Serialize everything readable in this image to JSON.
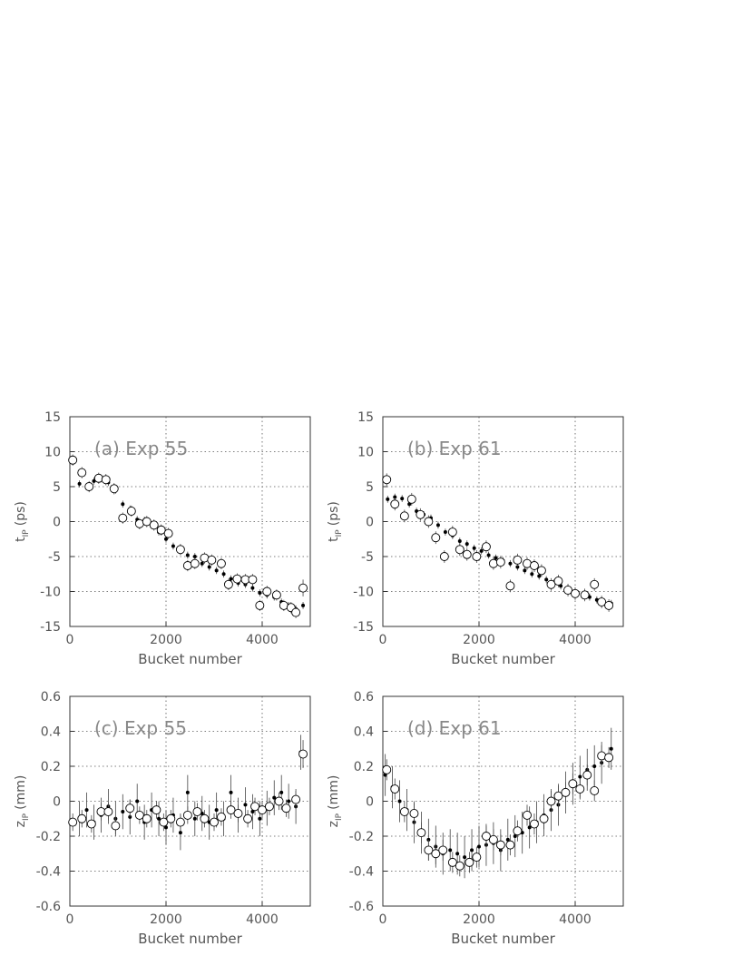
{
  "chart_data": [
    {
      "type": "scatter",
      "annotation": "(a) Exp 55",
      "x_label": "Bucket number",
      "y_label": "t",
      "y_label_subscript": "IP",
      "y_label_unit": "(ps)",
      "xlim": [
        0,
        5000
      ],
      "xticks": [
        0,
        2000,
        4000
      ],
      "ylim": [
        -15,
        15
      ],
      "yticks": [
        -15,
        -10,
        -5,
        0,
        5,
        10,
        15
      ],
      "grid": true,
      "series": [
        {
          "marker": "dot",
          "color": "#000000",
          "x": [
            200,
            350,
            500,
            650,
            800,
            950,
            1100,
            1250,
            1400,
            1550,
            1700,
            1850,
            2000,
            2150,
            2300,
            2450,
            2600,
            2750,
            2900,
            3050,
            3200,
            3350,
            3500,
            3650,
            3800,
            3950,
            4100,
            4250,
            4400,
            4550,
            4700,
            4850
          ],
          "values": [
            5.4,
            5.0,
            5.8,
            6.1,
            5.6,
            4.5,
            2.5,
            1.8,
            0.3,
            0.2,
            -0.5,
            -1.5,
            -2.5,
            -3.5,
            -4.2,
            -4.8,
            -5.0,
            -6.0,
            -6.5,
            -7.0,
            -7.5,
            -8.2,
            -8.8,
            -9.0,
            -9.5,
            -10.2,
            -10.5,
            -10.8,
            -11.5,
            -12.0,
            -12.5,
            -12.0
          ],
          "errors": [
            0.5,
            0.5,
            0.5,
            0.5,
            0.5,
            0.5,
            0.5,
            0.5,
            0.5,
            0.5,
            0.5,
            0.5,
            0.5,
            0.5,
            0.5,
            0.5,
            0.5,
            0.5,
            0.5,
            0.5,
            0.5,
            0.5,
            0.5,
            0.5,
            0.5,
            0.5,
            0.5,
            0.5,
            0.5,
            0.5,
            0.5,
            0.5
          ]
        },
        {
          "marker": "circle",
          "color": "#000000",
          "x": [
            60,
            250,
            400,
            600,
            750,
            920,
            1100,
            1280,
            1450,
            1600,
            1750,
            1900,
            2050,
            2300,
            2450,
            2600,
            2800,
            2950,
            3150,
            3300,
            3480,
            3650,
            3800,
            3950,
            4100,
            4300,
            4450,
            4600,
            4700,
            4850
          ],
          "values": [
            8.8,
            7.0,
            5.0,
            6.2,
            6.0,
            4.7,
            0.5,
            1.5,
            -0.3,
            0.0,
            -0.5,
            -1.2,
            -1.7,
            -4.0,
            -6.3,
            -6.0,
            -5.2,
            -5.5,
            -6.0,
            -9.0,
            -8.2,
            -8.3,
            -8.3,
            -12.0,
            -10.0,
            -10.5,
            -12.0,
            -12.3,
            -13.0,
            -9.5
          ],
          "errors": [
            0.8,
            0.8,
            0.8,
            0.8,
            0.8,
            0.8,
            0.8,
            0.8,
            0.8,
            0.8,
            0.8,
            0.8,
            0.8,
            0.8,
            0.8,
            0.8,
            0.8,
            0.8,
            0.8,
            0.8,
            0.8,
            0.8,
            0.8,
            0.8,
            0.8,
            0.8,
            0.8,
            0.8,
            0.8,
            1.2
          ]
        }
      ]
    },
    {
      "type": "scatter",
      "annotation": "(b) Exp 61",
      "x_label": "Bucket number",
      "y_label": "t",
      "y_label_subscript": "IP",
      "y_label_unit": "(ps)",
      "xlim": [
        0,
        5000
      ],
      "xticks": [
        0,
        2000,
        4000
      ],
      "ylim": [
        -15,
        15
      ],
      "yticks": [
        -15,
        -10,
        -5,
        0,
        5,
        10,
        15
      ],
      "grid": true,
      "series": [
        {
          "marker": "dot",
          "color": "#000000",
          "x": [
            100,
            250,
            400,
            550,
            700,
            850,
            1000,
            1150,
            1300,
            1450,
            1600,
            1750,
            1900,
            2050,
            2200,
            2350,
            2500,
            2650,
            2800,
            2950,
            3100,
            3250,
            3400,
            3550,
            3700,
            3850,
            4000,
            4150,
            4300,
            4450,
            4600,
            4750
          ],
          "values": [
            3.2,
            3.5,
            3.3,
            2.5,
            1.5,
            1.0,
            0.5,
            -0.5,
            -1.5,
            -2.0,
            -2.8,
            -3.2,
            -3.8,
            -4.2,
            -4.8,
            -5.2,
            -5.6,
            -6.0,
            -6.5,
            -7.0,
            -7.5,
            -7.8,
            -8.3,
            -8.8,
            -9.2,
            -9.6,
            -10.0,
            -10.5,
            -10.8,
            -11.2,
            -11.5,
            -11.7
          ],
          "errors": [
            0.5,
            0.5,
            0.5,
            0.5,
            0.5,
            0.5,
            0.5,
            0.5,
            0.5,
            0.5,
            0.5,
            0.5,
            0.5,
            0.5,
            0.5,
            0.5,
            0.5,
            0.5,
            0.5,
            0.5,
            0.5,
            0.5,
            0.5,
            0.5,
            0.5,
            0.5,
            0.5,
            0.5,
            0.5,
            0.5,
            0.5,
            0.5
          ]
        },
        {
          "marker": "circle",
          "color": "#000000",
          "x": [
            80,
            250,
            450,
            600,
            780,
            950,
            1100,
            1280,
            1450,
            1600,
            1750,
            1950,
            2150,
            2300,
            2450,
            2650,
            2800,
            3000,
            3150,
            3300,
            3500,
            3650,
            3850,
            4000,
            4200,
            4400,
            4550,
            4700
          ],
          "values": [
            6.0,
            2.5,
            0.8,
            3.2,
            1.0,
            0.0,
            -2.3,
            -5.0,
            -1.5,
            -4.0,
            -4.7,
            -5.0,
            -3.6,
            -6.0,
            -5.8,
            -9.2,
            -5.5,
            -6.0,
            -6.3,
            -7.0,
            -9.0,
            -8.5,
            -9.8,
            -10.3,
            -10.5,
            -9.0,
            -11.5,
            -12.0
          ],
          "errors": [
            0.9,
            0.9,
            0.9,
            0.9,
            0.9,
            0.9,
            0.9,
            0.9,
            0.9,
            0.9,
            0.9,
            0.9,
            0.9,
            0.9,
            0.9,
            0.9,
            0.9,
            0.9,
            0.9,
            0.9,
            0.9,
            0.9,
            0.9,
            0.9,
            0.9,
            0.9,
            0.9,
            0.9
          ]
        }
      ]
    },
    {
      "type": "scatter",
      "annotation": "(c) Exp 55",
      "x_label": "Bucket number",
      "y_label": "z",
      "y_label_subscript": "IP",
      "y_label_unit": "(mm)",
      "xlim": [
        0,
        5000
      ],
      "xticks": [
        0,
        2000,
        4000
      ],
      "ylim": [
        -0.6,
        0.6
      ],
      "yticks": [
        -0.6,
        -0.4,
        -0.2,
        0,
        0.2,
        0.4,
        0.6
      ],
      "grid": true,
      "series": [
        {
          "marker": "dot",
          "color": "#000000",
          "x": [
            200,
            350,
            500,
            650,
            800,
            950,
            1100,
            1250,
            1400,
            1550,
            1700,
            1850,
            2000,
            2150,
            2300,
            2450,
            2600,
            2750,
            2900,
            3050,
            3200,
            3350,
            3500,
            3650,
            3800,
            3950,
            4100,
            4250,
            4400,
            4550,
            4700,
            4800
          ],
          "values": [
            -0.1,
            -0.05,
            -0.12,
            -0.08,
            -0.03,
            -0.1,
            -0.06,
            -0.09,
            0.0,
            -0.12,
            -0.05,
            -0.1,
            -0.15,
            -0.08,
            -0.18,
            0.05,
            -0.1,
            -0.07,
            -0.12,
            -0.05,
            -0.1,
            0.05,
            -0.08,
            -0.02,
            -0.06,
            -0.1,
            -0.04,
            0.02,
            0.05,
            0.0,
            -0.03,
            0.28
          ],
          "errors": [
            0.1,
            0.1,
            0.1,
            0.1,
            0.1,
            0.1,
            0.1,
            0.1,
            0.1,
            0.1,
            0.1,
            0.1,
            0.1,
            0.1,
            0.1,
            0.1,
            0.1,
            0.1,
            0.1,
            0.1,
            0.1,
            0.1,
            0.1,
            0.1,
            0.1,
            0.1,
            0.1,
            0.1,
            0.1,
            0.1,
            0.1,
            0.1
          ]
        },
        {
          "marker": "circle",
          "color": "#000000",
          "x": [
            60,
            250,
            450,
            650,
            800,
            950,
            1250,
            1450,
            1600,
            1800,
            1950,
            2100,
            2300,
            2450,
            2650,
            2800,
            3000,
            3150,
            3350,
            3500,
            3700,
            3850,
            4000,
            4150,
            4350,
            4500,
            4700,
            4850
          ],
          "values": [
            -0.12,
            -0.1,
            -0.13,
            -0.06,
            -0.06,
            -0.14,
            -0.04,
            -0.08,
            -0.1,
            -0.05,
            -0.12,
            -0.1,
            -0.12,
            -0.08,
            -0.06,
            -0.1,
            -0.12,
            -0.09,
            -0.05,
            -0.07,
            -0.1,
            -0.03,
            -0.05,
            -0.03,
            0.0,
            -0.04,
            0.01,
            0.27
          ],
          "errors": [
            0.05,
            0.05,
            0.05,
            0.05,
            0.05,
            0.05,
            0.05,
            0.05,
            0.05,
            0.05,
            0.05,
            0.05,
            0.05,
            0.05,
            0.05,
            0.05,
            0.05,
            0.05,
            0.05,
            0.05,
            0.05,
            0.05,
            0.05,
            0.05,
            0.05,
            0.05,
            0.05,
            0.08
          ]
        }
      ]
    },
    {
      "type": "scatter",
      "annotation": "(d) Exp 61",
      "x_label": "Bucket number",
      "y_label": "z",
      "y_label_subscript": "IP",
      "y_label_unit": "(mm)",
      "xlim": [
        0,
        5000
      ],
      "xticks": [
        0,
        2000,
        4000
      ],
      "ylim": [
        -0.6,
        0.6
      ],
      "yticks": [
        -0.6,
        -0.4,
        -0.2,
        0,
        0.2,
        0.4,
        0.6
      ],
      "grid": true,
      "series": [
        {
          "marker": "dot",
          "color": "#000000",
          "x": [
            50,
            200,
            350,
            500,
            650,
            800,
            950,
            1100,
            1250,
            1400,
            1550,
            1700,
            1850,
            2000,
            2150,
            2300,
            2450,
            2600,
            2750,
            2900,
            3050,
            3200,
            3350,
            3500,
            3650,
            3800,
            3950,
            4100,
            4250,
            4400,
            4550,
            4750
          ],
          "values": [
            0.15,
            0.08,
            0.0,
            -0.05,
            -0.12,
            -0.18,
            -0.22,
            -0.26,
            -0.3,
            -0.28,
            -0.3,
            -0.32,
            -0.28,
            -0.26,
            -0.25,
            -0.24,
            -0.28,
            -0.22,
            -0.2,
            -0.18,
            -0.15,
            -0.12,
            -0.08,
            -0.05,
            -0.02,
            0.05,
            0.1,
            0.14,
            0.18,
            0.2,
            0.22,
            0.3
          ],
          "errors": [
            0.12,
            0.12,
            0.12,
            0.12,
            0.12,
            0.12,
            0.12,
            0.12,
            0.12,
            0.12,
            0.12,
            0.12,
            0.12,
            0.12,
            0.12,
            0.12,
            0.12,
            0.12,
            0.12,
            0.12,
            0.12,
            0.12,
            0.12,
            0.12,
            0.12,
            0.12,
            0.12,
            0.12,
            0.12,
            0.12,
            0.12,
            0.12
          ]
        },
        {
          "marker": "circle",
          "color": "#000000",
          "x": [
            80,
            250,
            450,
            650,
            800,
            950,
            1100,
            1250,
            1450,
            1600,
            1800,
            1950,
            2150,
            2300,
            2450,
            2650,
            2800,
            3000,
            3150,
            3350,
            3500,
            3650,
            3800,
            3950,
            4100,
            4250,
            4400,
            4550,
            4700
          ],
          "values": [
            0.18,
            0.07,
            -0.06,
            -0.07,
            -0.18,
            -0.28,
            -0.3,
            -0.28,
            -0.35,
            -0.37,
            -0.35,
            -0.32,
            -0.2,
            -0.22,
            -0.25,
            -0.25,
            -0.17,
            -0.08,
            -0.13,
            -0.1,
            0.0,
            0.03,
            0.05,
            0.1,
            0.07,
            0.15,
            0.06,
            0.26,
            0.25
          ],
          "errors": [
            0.06,
            0.06,
            0.06,
            0.06,
            0.06,
            0.06,
            0.06,
            0.06,
            0.06,
            0.06,
            0.06,
            0.06,
            0.06,
            0.06,
            0.06,
            0.06,
            0.06,
            0.06,
            0.06,
            0.06,
            0.06,
            0.06,
            0.06,
            0.06,
            0.06,
            0.06,
            0.06,
            0.06,
            0.06
          ]
        }
      ]
    }
  ]
}
